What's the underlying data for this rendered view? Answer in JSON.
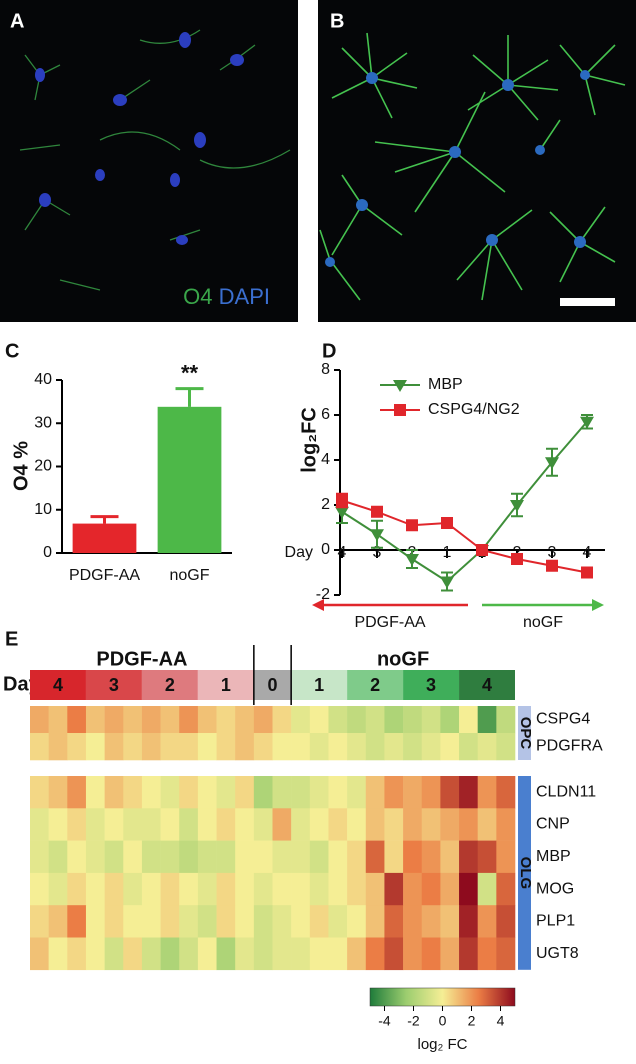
{
  "images": [
    {
      "label": "A",
      "legend": [
        "O4",
        "DAPI"
      ]
    },
    {
      "label": "B"
    }
  ],
  "chart_data": [
    {
      "type": "bar",
      "panel_label": "C",
      "ylabel": "O4 %",
      "categories": [
        "PDGF-AA",
        "noGF"
      ],
      "values": [
        6.8,
        33.8
      ],
      "errors": [
        1.6,
        4.2
      ],
      "colors": [
        "#e4262b",
        "#4db848"
      ],
      "annotation": "**",
      "ylim": [
        0,
        40
      ],
      "yticks": [
        0,
        10,
        20,
        30,
        40
      ]
    },
    {
      "type": "line",
      "panel_label": "D",
      "ylabel": "log₂FC",
      "xlabel": "Day",
      "categories": [
        "4",
        "3",
        "2",
        "1",
        "1",
        "2",
        "3",
        "4"
      ],
      "series": [
        {
          "name": "MBP",
          "color": "#3f8f3a",
          "marker": "triangle-down",
          "values": [
            1.7,
            0.7,
            -0.4,
            -1.4,
            0,
            2.0,
            3.9,
            5.7
          ],
          "errors": [
            0.5,
            0.6,
            0.4,
            0.4,
            0,
            0.5,
            0.6,
            0.3
          ]
        },
        {
          "name": "CSPG4/NG2",
          "color": "#e0262b",
          "marker": "square",
          "values": [
            2.2,
            1.7,
            1.1,
            1.2,
            0,
            -0.4,
            -0.7,
            -1.0
          ],
          "errors": [
            0.3,
            0.15,
            0.1,
            0.1,
            0,
            0.1,
            0.1,
            0.1
          ]
        }
      ],
      "arrows": [
        {
          "label": "PDGF-AA",
          "color": "#e0262b"
        },
        {
          "label": "noGF",
          "color": "#4db848"
        }
      ],
      "ylim": [
        -2,
        8
      ],
      "yticks": [
        -2,
        0,
        2,
        4,
        6,
        8
      ]
    },
    {
      "type": "heatmap",
      "panel_label": "E",
      "xlabel": "Day",
      "condition_labels": [
        "PDGF-AA",
        "noGF"
      ],
      "days": [
        {
          "label": "4",
          "color": "#d7262c",
          "columns": 3
        },
        {
          "label": "3",
          "color": "#d9474a",
          "columns": 3
        },
        {
          "label": "2",
          "color": "#de7a7e",
          "columns": 3
        },
        {
          "label": "1",
          "color": "#ebb6b8",
          "columns": 3
        },
        {
          "label": "0",
          "color": "#a9a9a9",
          "columns": 2
        },
        {
          "label": "1",
          "color": "#c7e6c8",
          "columns": 3
        },
        {
          "label": "2",
          "color": "#7fcb8a",
          "columns": 3
        },
        {
          "label": "3",
          "color": "#3fae5a",
          "columns": 3
        },
        {
          "label": "4",
          "color": "#2f7d3f",
          "columns": 3
        }
      ],
      "row_groups": [
        {
          "label": "OPC",
          "color": "#b4c3e6",
          "rows": [
            {
              "name": "CSPG4",
              "values": [
                1.5,
                1,
                2.5,
                1,
                1.5,
                1,
                1.5,
                1,
                2,
                1,
                0.5,
                1,
                1.5,
                0.5,
                -0.5,
                0,
                -1,
                -1.5,
                -1,
                -2,
                -1.5,
                -1,
                -2,
                0,
                -4,
                -1.5
              ]
            },
            {
              "name": "PDGFRA",
              "values": [
                0.5,
                1,
                0.5,
                0,
                1,
                0.5,
                1,
                0.5,
                0.5,
                0,
                0.5,
                1,
                0.5,
                0,
                0,
                -0.5,
                0,
                -0.5,
                -1,
                -0.5,
                -1,
                -0.5,
                0,
                -1,
                -0.5,
                -1
              ]
            }
          ]
        },
        {
          "label": "OLG",
          "color": "#4a7fcf",
          "rows": [
            {
              "name": "CLDN11",
              "values": [
                0.5,
                1,
                2,
                0,
                1,
                0.5,
                0,
                -0.5,
                0.5,
                0,
                -0.5,
                0.5,
                -2,
                -1,
                -1,
                -0.5,
                0,
                -0.5,
                1,
                2,
                1.5,
                2,
                3.5,
                4.5,
                2,
                3
              ]
            },
            {
              "name": "CNP",
              "values": [
                -0.5,
                0,
                0.5,
                -0.5,
                0,
                -0.5,
                -0.5,
                0,
                -1,
                0,
                0.5,
                0,
                -0.5,
                1.5,
                -0.5,
                0,
                0.5,
                0,
                1,
                0.5,
                1.5,
                1,
                1.5,
                2,
                1,
                2
              ]
            },
            {
              "name": "MBP",
              "values": [
                -0.5,
                -1,
                0,
                -0.5,
                -1,
                0,
                -1,
                -1,
                -1.5,
                -1,
                -1,
                0,
                0,
                -0.5,
                -0.5,
                -1,
                0,
                0.5,
                3,
                0.5,
                2.5,
                2,
                1,
                4,
                3.5,
                2
              ]
            },
            {
              "name": "MOG",
              "values": [
                0,
                -0.5,
                0.5,
                0,
                0.5,
                -0.5,
                0,
                0.5,
                0,
                -0.5,
                0.5,
                0,
                -0.5,
                0,
                0,
                -0.5,
                0,
                0.5,
                1,
                4,
                2,
                2.5,
                1.5,
                5.5,
                -1,
                3
              ]
            },
            {
              "name": "PLP1",
              "values": [
                0.5,
                1,
                2.5,
                0,
                0.5,
                0,
                0,
                0.5,
                -0.5,
                -1,
                0.5,
                0,
                -1,
                -0.5,
                0,
                0.5,
                -0.5,
                0,
                1,
                3,
                2,
                1.5,
                1,
                4.5,
                2,
                3.5
              ]
            },
            {
              "name": "UGT8",
              "values": [
                1,
                0,
                0.5,
                0,
                -1,
                0.5,
                -1,
                -2,
                -1,
                0,
                -2,
                -0.5,
                -1,
                -0.5,
                -0.5,
                0,
                0,
                1,
                2.5,
                3.5,
                2,
                2.5,
                1.5,
                4,
                2.5,
                3
              ]
            }
          ]
        }
      ],
      "clim": [
        -5,
        5
      ],
      "colormap": [
        "#1e7b3a",
        "#9ccd6f",
        "#f5ee95",
        "#eb7d45",
        "#8e0b1e"
      ],
      "colorbar_ticks": [
        -4,
        -2,
        0,
        2,
        4
      ],
      "colorbar_label": "log₂ FC"
    }
  ]
}
